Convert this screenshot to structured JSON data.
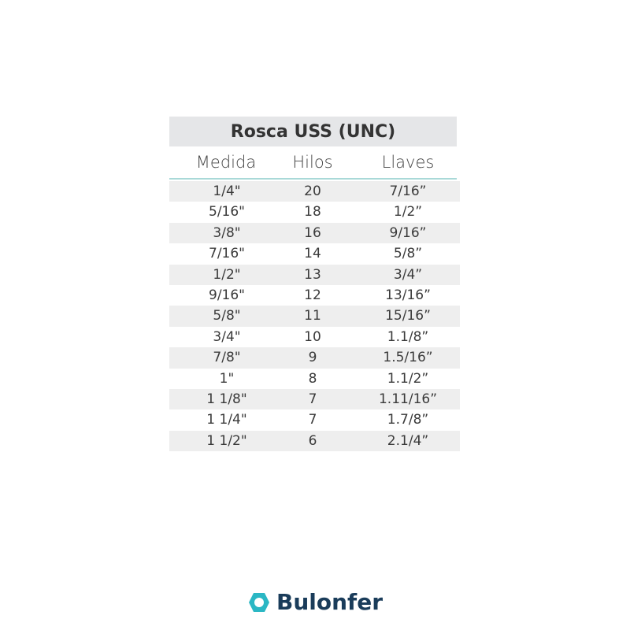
{
  "table": {
    "title": "Rosca USS (UNC)",
    "headers": [
      "Medida",
      "Hilos",
      "Llaves"
    ],
    "rows": [
      [
        "1/4\"",
        "20",
        "7/16”"
      ],
      [
        "5/16\"",
        "18",
        "1/2”"
      ],
      [
        "3/8\"",
        "16",
        "9/16”"
      ],
      [
        "7/16\"",
        "14",
        "5/8”"
      ],
      [
        "1/2\"",
        "13",
        "3/4”"
      ],
      [
        "9/16\"",
        "12",
        "13/16”"
      ],
      [
        "5/8\"",
        "11",
        "15/16”"
      ],
      [
        "3/4\"",
        "10",
        "1.1/8”"
      ],
      [
        "7/8\"",
        "9",
        "1.5/16”"
      ],
      [
        "1\"",
        "8",
        "1.1/2”"
      ],
      [
        "1 1/8\"",
        "7",
        "1.11/16”"
      ],
      [
        "1 1/4\"",
        "7",
        "1.7/8”"
      ],
      [
        "1 1/2\"",
        "6",
        "2.1/4”"
      ]
    ]
  },
  "brand": {
    "name": "Bulonfer",
    "icon": "hexagon-nut-icon",
    "accent": "#2bb7c4",
    "text_color": "#1a3c5a"
  }
}
